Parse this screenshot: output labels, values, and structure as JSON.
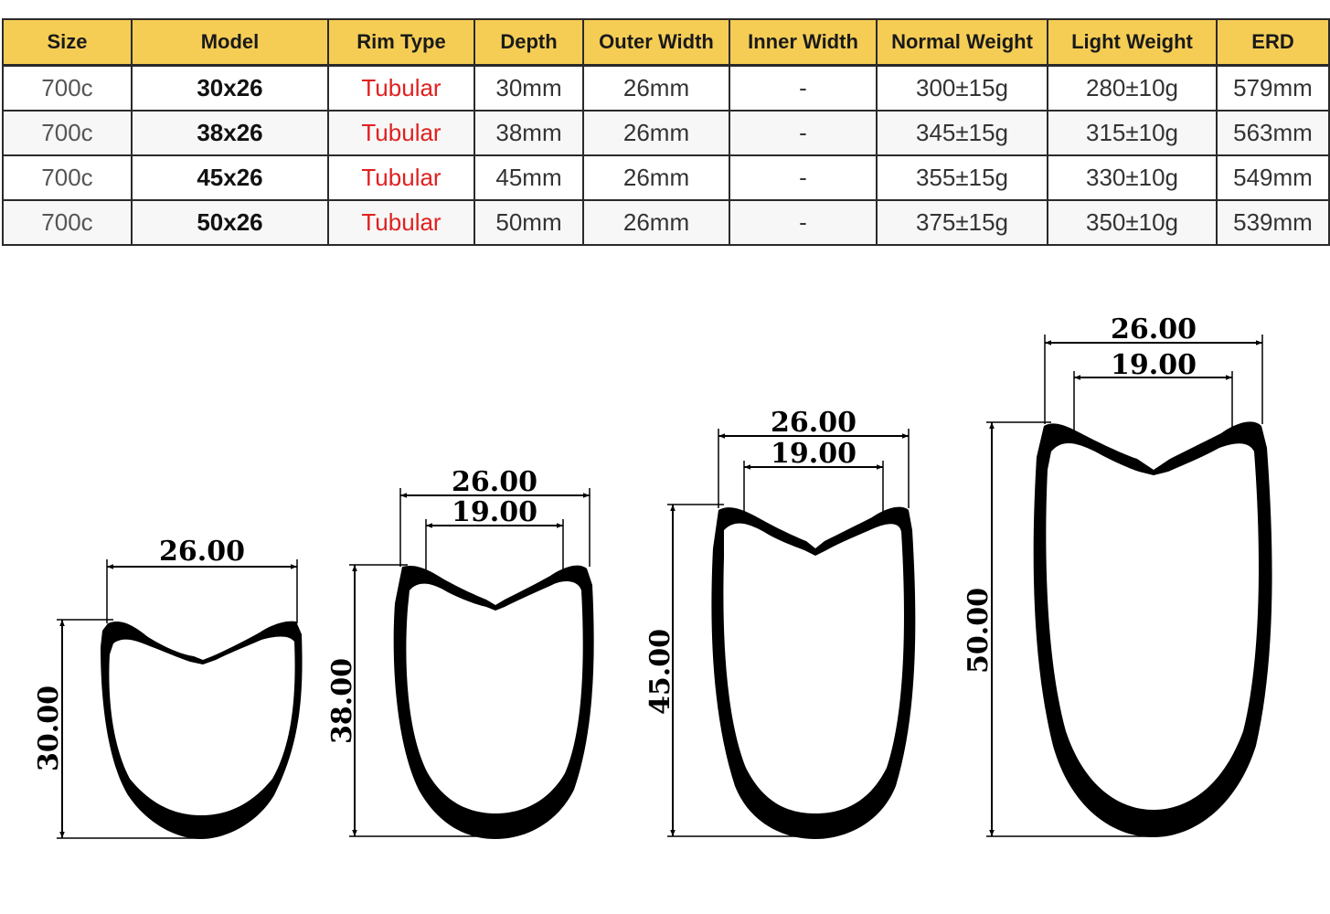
{
  "colors": {
    "header_bg": "#f5cd55",
    "rim_type_text": "#e02020",
    "grid": "#2a2a2a"
  },
  "table": {
    "headers": [
      "Size",
      "Model",
      "Rim Type",
      "Depth",
      "Outer Width",
      "Inner Width",
      "Normal Weight",
      "Light Weight",
      "ERD"
    ],
    "rows": [
      {
        "size": "700c",
        "model": "30x26",
        "rim_type": "Tubular",
        "depth": "30mm",
        "outer_width": "26mm",
        "inner_width": "-",
        "normal_weight": "300±15g",
        "light_weight": "280±10g",
        "erd": "579mm"
      },
      {
        "size": "700c",
        "model": "38x26",
        "rim_type": "Tubular",
        "depth": "38mm",
        "outer_width": "26mm",
        "inner_width": "-",
        "normal_weight": "345±15g",
        "light_weight": "315±10g",
        "erd": "563mm"
      },
      {
        "size": "700c",
        "model": "45x26",
        "rim_type": "Tubular",
        "depth": "45mm",
        "outer_width": "26mm",
        "inner_width": "-",
        "normal_weight": "355±15g",
        "light_weight": "330±10g",
        "erd": "549mm"
      },
      {
        "size": "700c",
        "model": "50x26",
        "rim_type": "Tubular",
        "depth": "50mm",
        "outer_width": "26mm",
        "inner_width": "-",
        "normal_weight": "375±15g",
        "light_weight": "350±10g",
        "erd": "539mm"
      }
    ]
  },
  "profiles": [
    {
      "outer_width": "26.00",
      "inner_width": "",
      "height": "30.00"
    },
    {
      "outer_width": "26.00",
      "inner_width": "19.00",
      "height": "38.00"
    },
    {
      "outer_width": "26.00",
      "inner_width": "19.00",
      "height": "45.00"
    },
    {
      "outer_width": "26.00",
      "inner_width": "19.00",
      "height": "50.00"
    }
  ]
}
